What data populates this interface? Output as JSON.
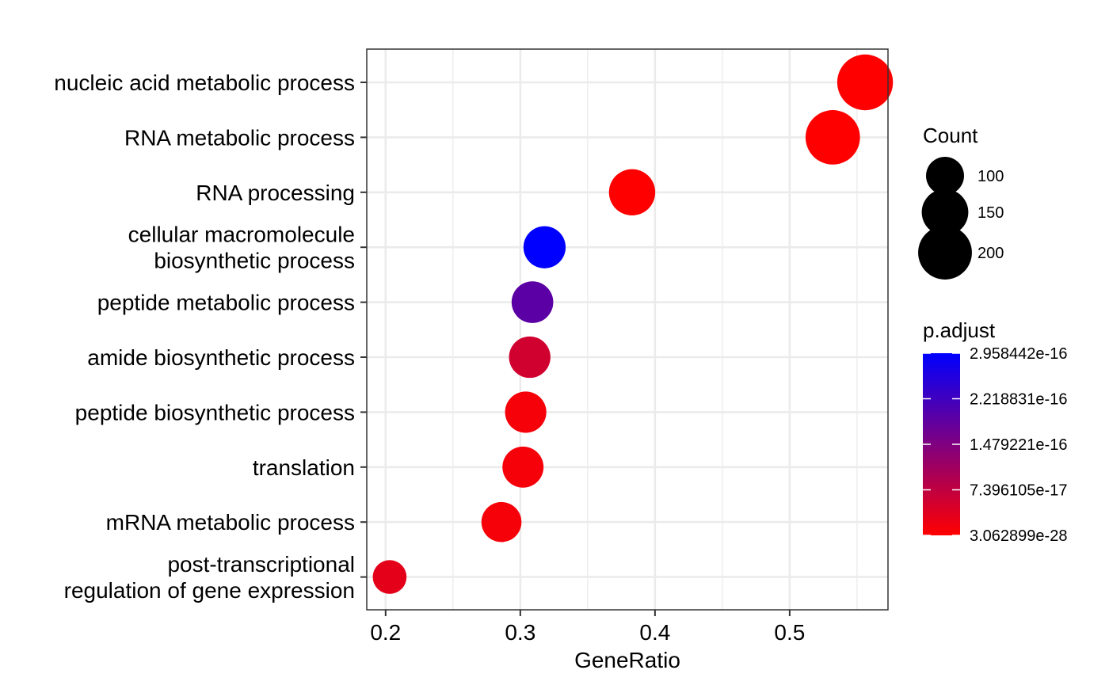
{
  "chart_data": {
    "type": "scatter",
    "xlabel": "GeneRatio",
    "ylabel": "",
    "xlim": [
      0.186,
      0.573
    ],
    "x_ticks": [
      0.2,
      0.3,
      0.4,
      0.5
    ],
    "x_tick_labels": [
      "0.2",
      "0.3",
      "0.4",
      "0.5"
    ],
    "grid": true,
    "categories": [
      [
        "nucleic acid metabolic process"
      ],
      [
        "RNA metabolic process"
      ],
      [
        "RNA processing"
      ],
      [
        "cellular macromolecule",
        "biosynthetic process"
      ],
      [
        "peptide metabolic process"
      ],
      [
        "amide biosynthetic process"
      ],
      [
        "peptide biosynthetic process"
      ],
      [
        "translation"
      ],
      [
        "mRNA metabolic process"
      ],
      [
        "post-transcriptional",
        "regulation of gene expression"
      ]
    ],
    "points": [
      {
        "x": 0.556,
        "count": 215,
        "p_adjust": 3e-28
      },
      {
        "x": 0.532,
        "count": 205,
        "p_adjust": 3e-28
      },
      {
        "x": 0.383,
        "count": 148,
        "p_adjust": 3e-28
      },
      {
        "x": 0.318,
        "count": 123,
        "p_adjust": 2.958442e-16
      },
      {
        "x": 0.309,
        "count": 120,
        "p_adjust": 1.9e-16
      },
      {
        "x": 0.307,
        "count": 119,
        "p_adjust": 5.5e-17
      },
      {
        "x": 0.304,
        "count": 118,
        "p_adjust": 1e-17
      },
      {
        "x": 0.302,
        "count": 117,
        "p_adjust": 1e-17
      },
      {
        "x": 0.286,
        "count": 111,
        "p_adjust": 1e-17
      },
      {
        "x": 0.203,
        "count": 79,
        "p_adjust": 3e-17
      }
    ],
    "legend_size": {
      "title": "Count",
      "values": [
        100,
        150,
        200
      ],
      "labels": [
        "100",
        "150",
        "200"
      ],
      "position": "right"
    },
    "legend_color": {
      "title": "p.adjust",
      "low_color": "#ff0000",
      "high_color": "#0000ff",
      "ticks": [
        2.958442e-16,
        2.218831e-16,
        1.479221e-16,
        7.396105e-17,
        3.062899e-28
      ],
      "labels": [
        "2.958442e-16",
        "2.218831e-16",
        "1.479221e-16",
        "7.396105e-17",
        "3.062899e-28"
      ],
      "position": "right"
    }
  }
}
